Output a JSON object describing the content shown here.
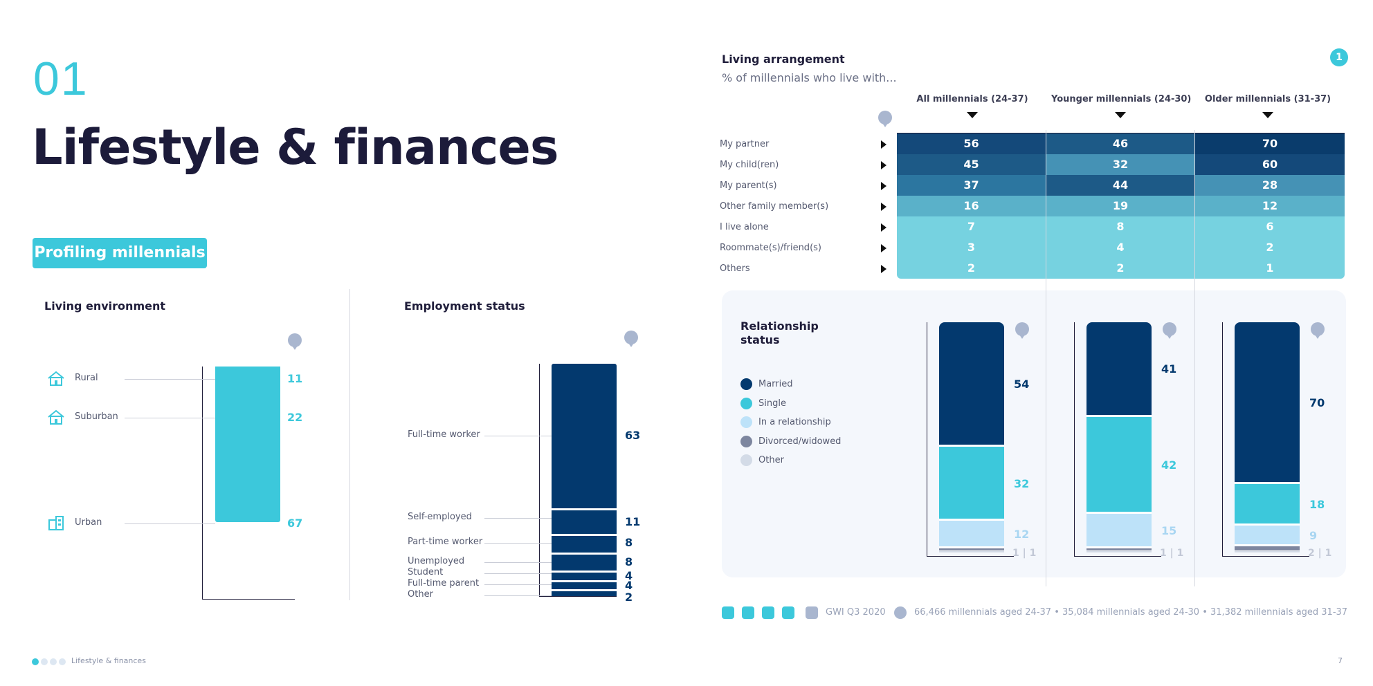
{
  "section": {
    "number": "01",
    "title": "Lifestyle & finances",
    "badge": "Profiling millennials"
  },
  "colors": {
    "teal": "#3cc8db",
    "navy": "#03396e",
    "light_blue": "#bde2f9",
    "slate": "#7d869f",
    "pale": "#d3dbe7"
  },
  "chart_data": [
    {
      "type": "bar",
      "stacked": true,
      "title": "Living environment",
      "categories": [
        "Rural",
        "Suburban",
        "Urban"
      ],
      "values": [
        11,
        22,
        67
      ],
      "icons": [
        "rural-house-icon",
        "suburban-house-icon",
        "urban-building-icon"
      ]
    },
    {
      "type": "bar",
      "stacked": true,
      "title": "Employment status",
      "categories": [
        "Full-time worker",
        "Self-employed",
        "Part-time worker",
        "Unemployed",
        "Student",
        "Full-time parent",
        "Other"
      ],
      "values": [
        63,
        11,
        8,
        8,
        4,
        4,
        2
      ]
    },
    {
      "type": "table",
      "title": "Living arrangement",
      "subtitle": "% of millennials who live with...",
      "badge": "1",
      "columns": [
        "All millennials (24-37)",
        "Younger millennials (24-30)",
        "Older millennials (31-37)"
      ],
      "rows": [
        "My partner",
        "My child(ren)",
        "My parent(s)",
        "Other family member(s)",
        "I live alone",
        "Roommate(s)/friend(s)",
        "Others"
      ],
      "values": [
        [
          56,
          46,
          70
        ],
        [
          45,
          32,
          60
        ],
        [
          37,
          44,
          28
        ],
        [
          16,
          19,
          12
        ],
        [
          7,
          8,
          6
        ],
        [
          3,
          4,
          2
        ],
        [
          2,
          2,
          1
        ]
      ]
    },
    {
      "type": "bar",
      "stacked": true,
      "title": "Relationship status",
      "categories": [
        "All millennials (24-37)",
        "Younger millennials (24-30)",
        "Older millennials (31-37)"
      ],
      "legend": [
        "Married",
        "Single",
        "In a relationship",
        "Divorced/widowed",
        "Other"
      ],
      "series": [
        {
          "name": "Married",
          "values": [
            54,
            41,
            70
          ]
        },
        {
          "name": "Single",
          "values": [
            32,
            42,
            18
          ]
        },
        {
          "name": "In a relationship",
          "values": [
            12,
            15,
            9
          ]
        },
        {
          "name": "Divorced/widowed",
          "values": [
            1,
            1,
            2
          ]
        },
        {
          "name": "Other",
          "values": [
            1,
            1,
            1
          ]
        }
      ],
      "small_labels": [
        "1 | 1",
        "1 | 1",
        "2 | 1"
      ]
    }
  ],
  "footer": {
    "source": "GWI Q3 2020",
    "base": "66,466 millennials aged 24-37 • 35,084 millennials aged 24-30 • 31,382 millennials aged 31-37",
    "page_label": "Lifestyle & finances",
    "page_number": "7"
  }
}
